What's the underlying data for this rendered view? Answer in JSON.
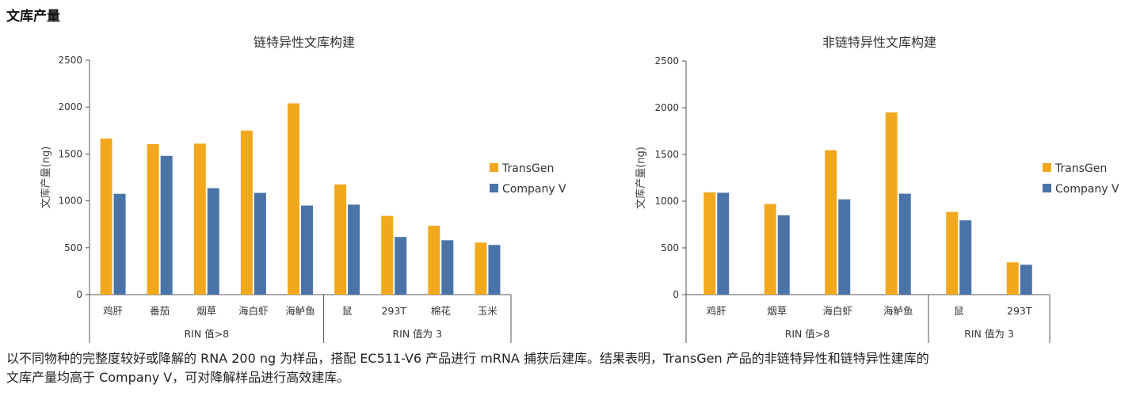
{
  "heading": "文库产量",
  "colors": {
    "TransGen": "#f2a81d",
    "Company V": "#4a74a8",
    "axis": "#555555"
  },
  "chart_data": [
    {
      "type": "bar",
      "title": "链特异性文库构建",
      "ylabel": "文库产量(ng)",
      "ylim": [
        0,
        2500
      ],
      "yticks": [
        0,
        500,
        1000,
        1500,
        2000,
        2500
      ],
      "categories": [
        "鸡肝",
        "番茄",
        "烟草",
        "海白虾",
        "海鲈鱼",
        "鼠",
        "293T",
        "棉花",
        "玉米"
      ],
      "groups": [
        {
          "label": "RIN 值>8",
          "count": 5
        },
        {
          "label": "RIN 值为 3",
          "count": 4
        }
      ],
      "series": [
        {
          "name": "TransGen",
          "values": [
            1665,
            1605,
            1610,
            1750,
            2040,
            1175,
            840,
            735,
            555
          ]
        },
        {
          "name": "Company V",
          "values": [
            1075,
            1480,
            1135,
            1085,
            950,
            960,
            615,
            580,
            530
          ]
        }
      ],
      "legend": "right"
    },
    {
      "type": "bar",
      "title": "非链特异性文库构建",
      "ylabel": "文库产量(ng)",
      "ylim": [
        0,
        2500
      ],
      "yticks": [
        0,
        500,
        1000,
        1500,
        2000,
        2500
      ],
      "categories": [
        "鸡肝",
        "烟草",
        "海白虾",
        "海鲈鱼",
        "鼠",
        "293T"
      ],
      "groups": [
        {
          "label": "RIN 值>8",
          "count": 4
        },
        {
          "label": "RIN 值为 3",
          "count": 2
        }
      ],
      "series": [
        {
          "name": "TransGen",
          "values": [
            1095,
            970,
            1545,
            1950,
            885,
            345
          ]
        },
        {
          "name": "Company V",
          "values": [
            1090,
            850,
            1020,
            1080,
            795,
            320
          ]
        }
      ],
      "legend": "right"
    }
  ],
  "caption": {
    "line1": "以不同物种的完整度较好或降解的 RNA  200 ng 为样品，搭配 EC511-V6 产品进行 mRNA 捕获后建库。结果表明，TransGen 产品的非链特异性和链特异性建库的",
    "line2": "文库产量均高于 Company V，可对降解样品进行高效建库。"
  }
}
